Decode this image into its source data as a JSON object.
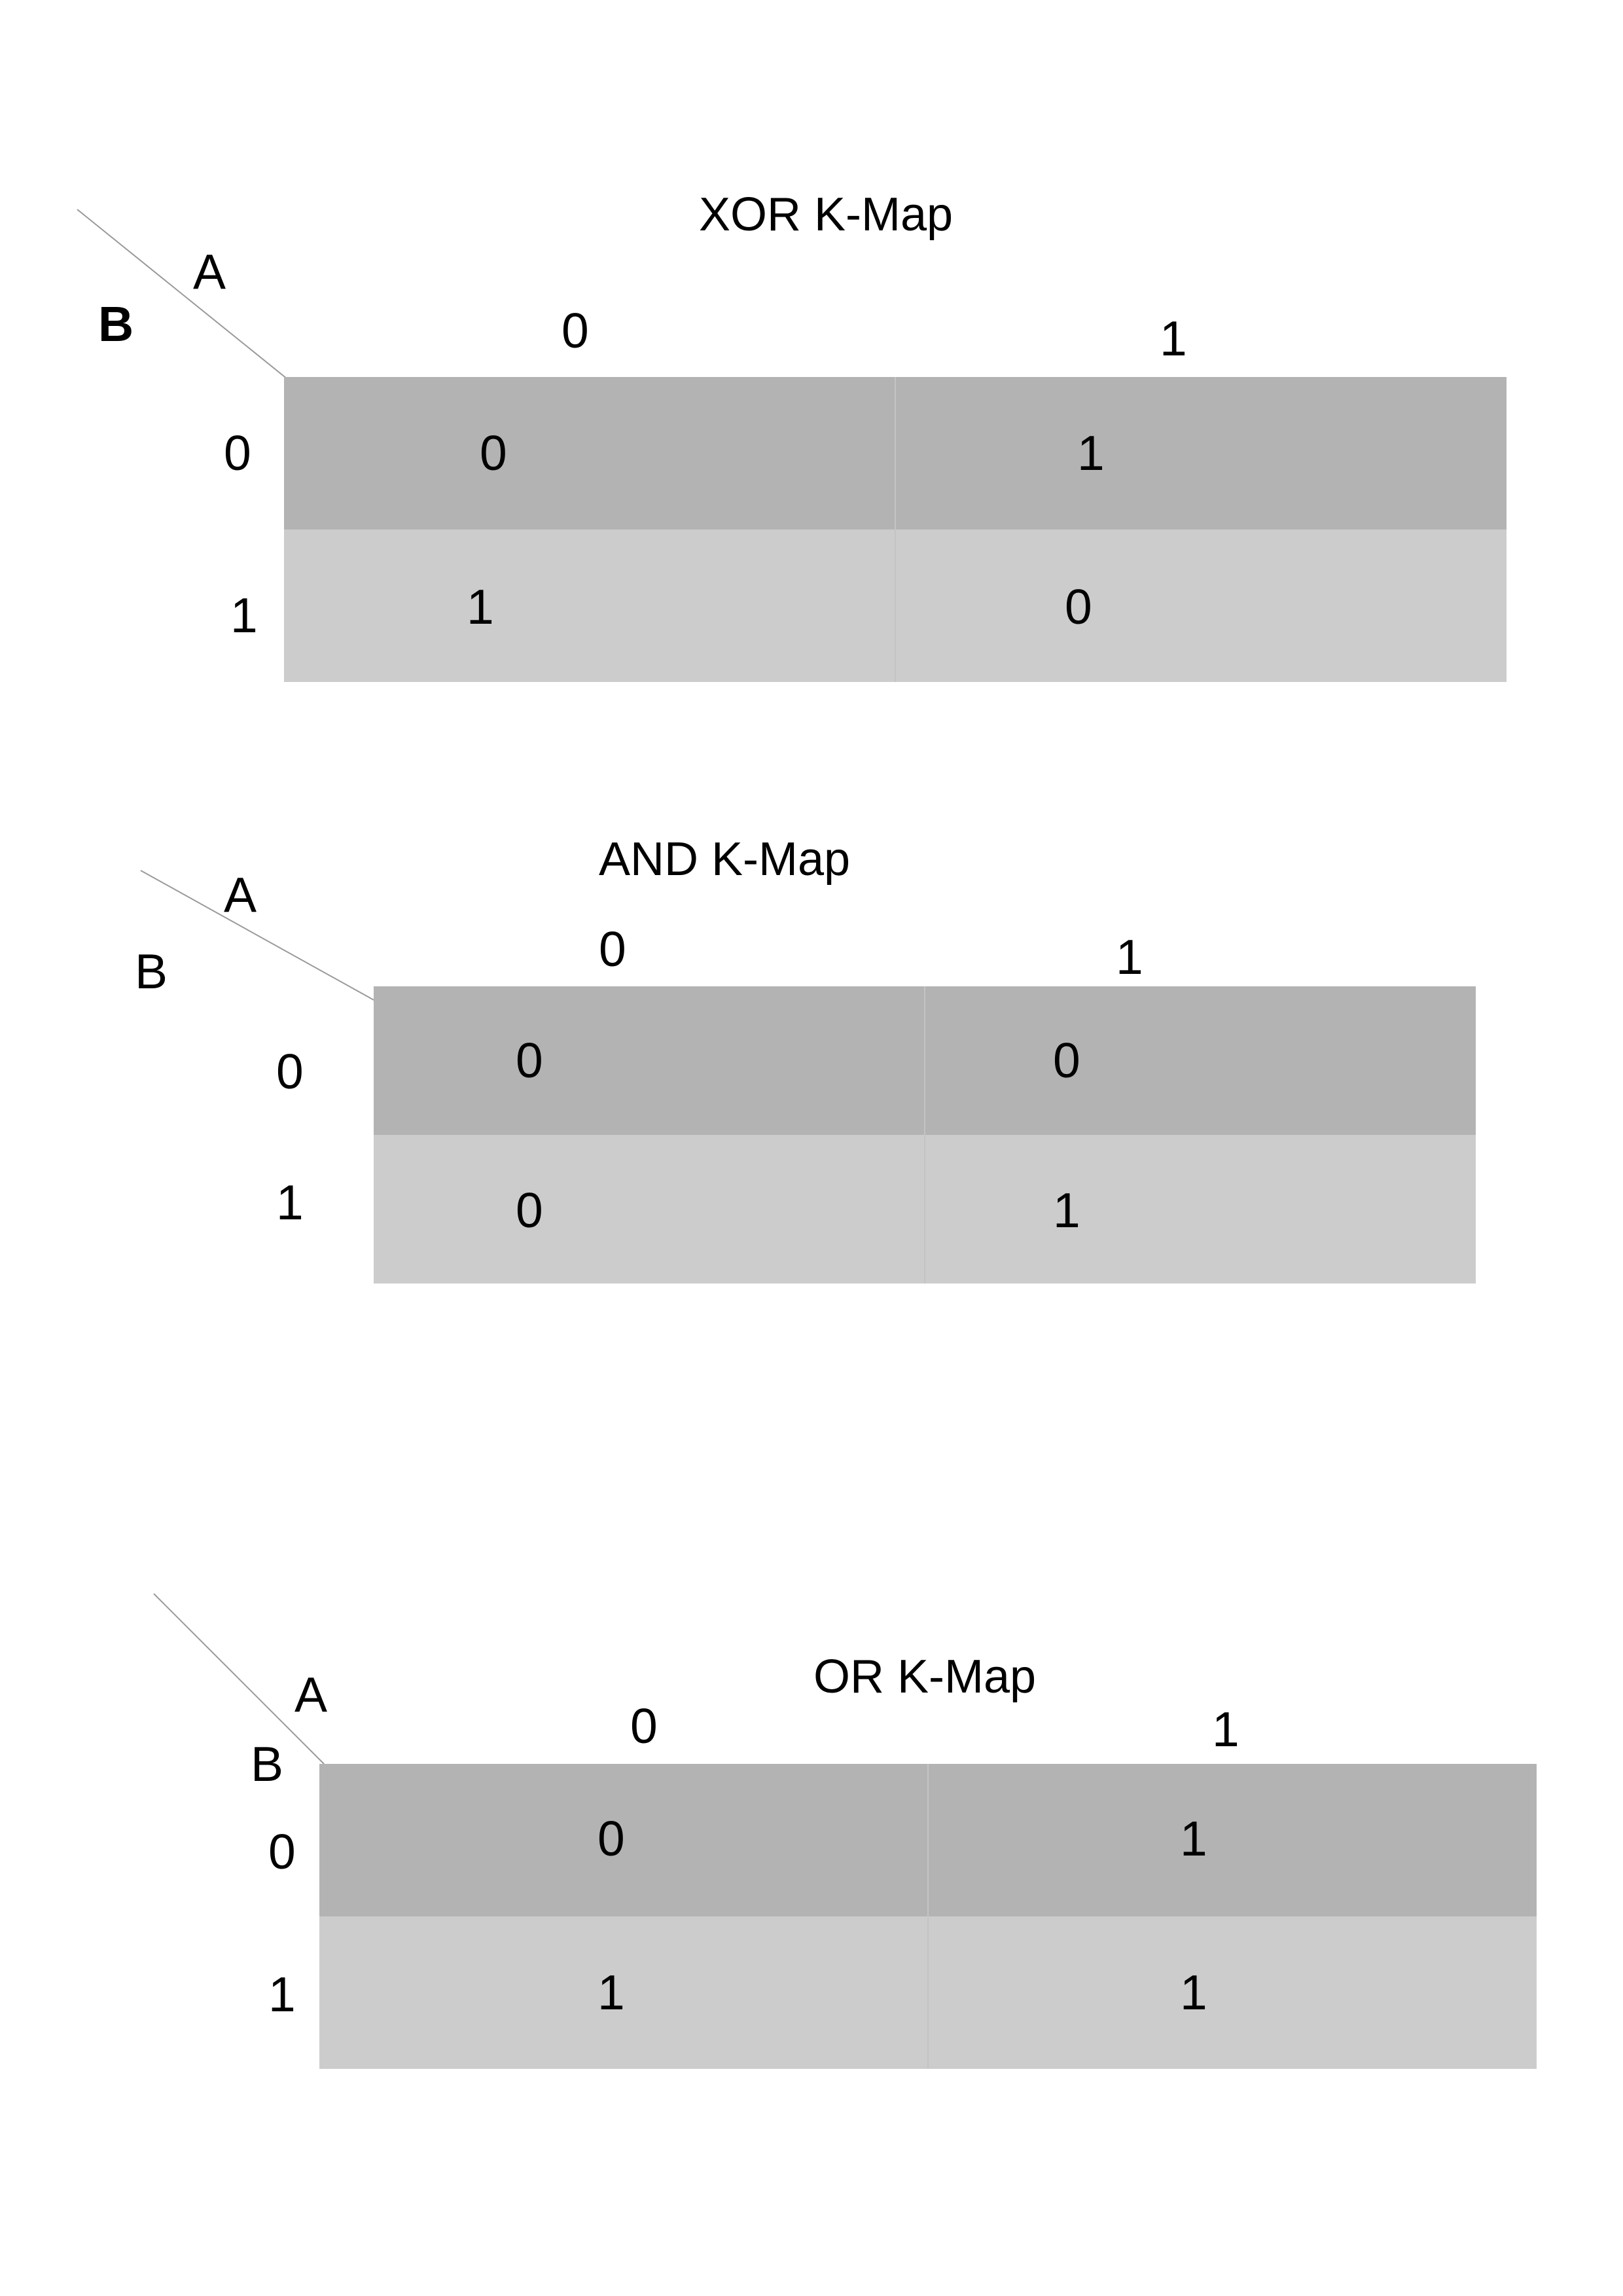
{
  "kmaps": [
    {
      "title": "XOR K-Map",
      "var_a": "A",
      "var_b": "B",
      "col_headers": [
        "0",
        "1"
      ],
      "row_headers": [
        "0",
        "1"
      ],
      "cells": [
        [
          "0",
          "1"
        ],
        [
          "1",
          "0"
        ]
      ]
    },
    {
      "title": "AND K-Map",
      "var_a": "A",
      "var_b": "B",
      "col_headers": [
        "0",
        "1"
      ],
      "row_headers": [
        "0",
        "1"
      ],
      "cells": [
        [
          "0",
          "0"
        ],
        [
          "0",
          "1"
        ]
      ]
    },
    {
      "title": "OR K-Map",
      "var_a": "A",
      "var_b": "B",
      "col_headers": [
        "0",
        "1"
      ],
      "row_headers": [
        "0",
        "1"
      ],
      "cells": [
        [
          "0",
          "1"
        ],
        [
          "1",
          "1"
        ]
      ]
    }
  ],
  "colors": {
    "row_0_fill": "#b3b3b3",
    "row_1_fill": "#cccccc",
    "diagonal_line": "#999999"
  }
}
